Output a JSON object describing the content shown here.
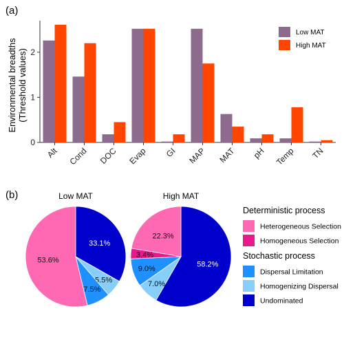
{
  "panel_labels": {
    "a": "(a)",
    "b": "(b)"
  },
  "chart_data": [
    {
      "type": "bar",
      "ylabel_line1": "Environmental breadths",
      "ylabel_line2": "(Threshold values)",
      "xlabel": "",
      "categories": [
        "Alt",
        "Cond",
        "DOC",
        "Evap",
        "GI",
        "MAP",
        "MAT",
        "pH",
        "Temp",
        "TN"
      ],
      "series": [
        {
          "name": "Low MAT",
          "color": "#8C6B8F",
          "values": [
            2.26,
            1.46,
            0.18,
            2.52,
            0.02,
            2.52,
            0.63,
            0.09,
            0.09,
            0.02
          ]
        },
        {
          "name": "High MAT",
          "color": "#FF4500",
          "values": [
            2.61,
            2.2,
            0.45,
            2.52,
            0.18,
            1.75,
            0.35,
            0.18,
            0.78,
            0.05
          ]
        }
      ],
      "ylim": [
        0,
        2.7
      ],
      "yticks": [
        "0",
        "1",
        "2"
      ],
      "yticks_values": [
        0,
        1,
        2
      ],
      "grid": false,
      "legend_position": "top-right"
    },
    {
      "type": "pie",
      "title": "Low MAT",
      "slices": [
        {
          "category": "Undominated",
          "value": 33.1,
          "label": "33.1%"
        },
        {
          "category": "Homogenizing Dispersal",
          "value": 5.5,
          "label": "5.5%"
        },
        {
          "category": "Dispersal Limitation",
          "value": 7.5,
          "label": "7.5%"
        },
        {
          "category": "Heterogeneous Selection",
          "value": 53.6,
          "label": "53.6%"
        }
      ]
    },
    {
      "type": "pie",
      "title": "High MAT",
      "slices": [
        {
          "category": "Undominated",
          "value": 58.2,
          "label": "58.2%"
        },
        {
          "category": "Homogenizing Dispersal",
          "value": 7.0,
          "label": "7.0%"
        },
        {
          "category": "Dispersal Limitation",
          "value": 9.0,
          "label": "9.0%"
        },
        {
          "category": "Homogeneous Selection",
          "value": 3.4,
          "label": "3.4%"
        },
        {
          "category": "Heterogeneous Selection",
          "value": 22.3,
          "label": "22.3%"
        }
      ]
    }
  ],
  "pie_legend": {
    "groups": [
      {
        "title": "Deterministic process",
        "items": [
          {
            "label": "Heterogeneous Selection",
            "color": "#FF69B4"
          },
          {
            "label": "Homogeneous Selection",
            "color": "#E8198B"
          }
        ]
      },
      {
        "title": "Stochastic process",
        "items": [
          {
            "label": "Dispersal Limitation",
            "color": "#1E90FF"
          },
          {
            "label": "Homogenizing Dispersal",
            "color": "#87CEFA"
          },
          {
            "label": "Undominated",
            "color": "#0000CD"
          }
        ]
      }
    ]
  }
}
